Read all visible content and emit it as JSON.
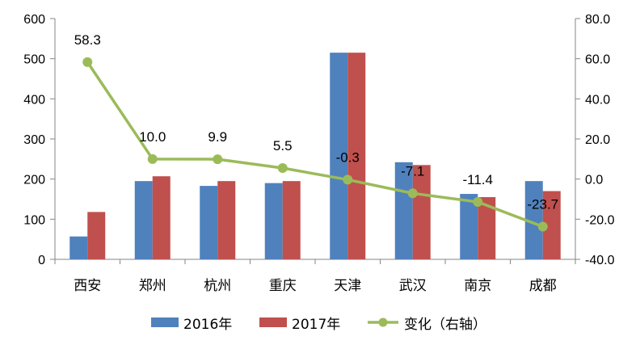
{
  "chart_data": {
    "type": "bar",
    "categories": [
      "西安",
      "郑州",
      "杭州",
      "重庆",
      "天津",
      "武汉",
      "南京",
      "成都"
    ],
    "series": [
      {
        "name": "2016年",
        "type": "bar",
        "axis": "left",
        "color": "#4F81BD",
        "values": [
          57,
          195,
          183,
          190,
          515,
          242,
          163,
          195
        ]
      },
      {
        "name": "2017年",
        "type": "bar",
        "axis": "left",
        "color": "#C0504D",
        "values": [
          118,
          207,
          195,
          195,
          515,
          235,
          155,
          170
        ]
      },
      {
        "name": "变化（右轴）",
        "type": "line",
        "axis": "right",
        "color": "#9BBB59",
        "values": [
          58.3,
          10.0,
          9.9,
          5.5,
          -0.3,
          -7.1,
          -11.4,
          -23.7
        ],
        "labels": [
          "58.3",
          "10.0",
          "9.9",
          "5.5",
          "-0.3",
          "-7.1",
          "-11.4",
          "-23.7"
        ]
      }
    ],
    "y_left": {
      "ylim": [
        0,
        600
      ],
      "ticks": [
        "0",
        "100",
        "200",
        "300",
        "400",
        "500",
        "600"
      ]
    },
    "y_right": {
      "ylim": [
        -40,
        80
      ],
      "ticks": [
        "-40.0",
        "-20.0",
        "0.0",
        "20.0",
        "40.0",
        "60.0",
        "80.0"
      ]
    },
    "legend": {
      "position": "bottom"
    },
    "grid": false
  }
}
